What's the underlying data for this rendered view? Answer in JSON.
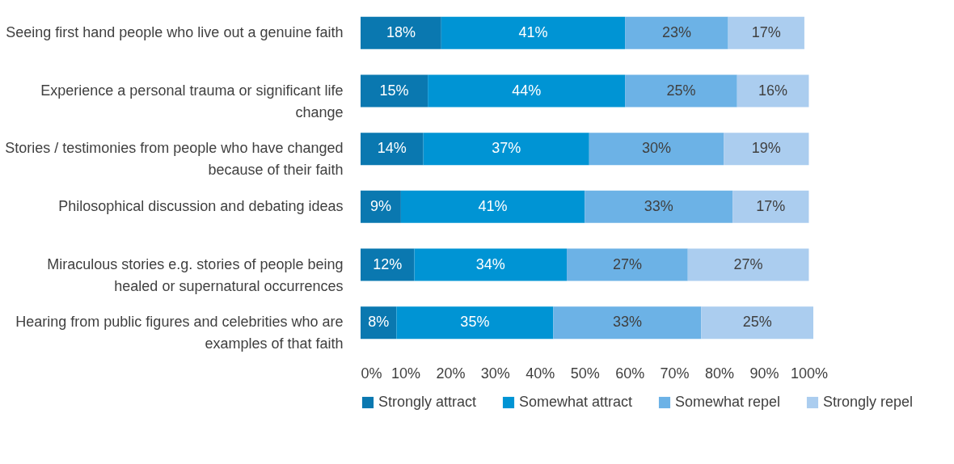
{
  "chart_data": {
    "type": "bar",
    "orientation": "horizontal",
    "stacked": true,
    "legend": "bottom",
    "grid": false,
    "categories": [
      "Seeing first hand people who live out a genuine faith",
      "Experience a personal trauma or significant life change",
      "Stories / testimonies from people who have changed because of their faith",
      "Philosophical discussion and debating ideas",
      "Miraculous stories  e.g. stories of people being healed or supernatural occurrences",
      "Hearing from public figures and celebrities who are examples of that faith"
    ],
    "xlim": [
      0,
      101
    ],
    "xticks": [
      {
        "value": 0,
        "label": "0%"
      },
      {
        "value": 10,
        "label": "10%"
      },
      {
        "value": 20,
        "label": "20%"
      },
      {
        "value": 30,
        "label": "30%"
      },
      {
        "value": 40,
        "label": "40%"
      },
      {
        "value": 50,
        "label": "50%"
      },
      {
        "value": 60,
        "label": "60%"
      },
      {
        "value": 70,
        "label": "70%"
      },
      {
        "value": 80,
        "label": "80%"
      },
      {
        "value": 90,
        "label": "90%"
      },
      {
        "value": 100,
        "label": "100%"
      }
    ],
    "series": [
      {
        "name": "Strongly attract",
        "color": "#0a78b0",
        "values": [
          18,
          15,
          14,
          9,
          12,
          8
        ],
        "value_labels": [
          "18%",
          "15%",
          "14%",
          "9%",
          "12%",
          "8%"
        ]
      },
      {
        "name": "Somewhat attract",
        "color": "#0094d4",
        "values": [
          41,
          44,
          37,
          41,
          34,
          35
        ],
        "value_labels": [
          "41%",
          "44%",
          "37%",
          "41%",
          "34%",
          "35%"
        ]
      },
      {
        "name": "Somewhat repel",
        "color": "#6cb2e6",
        "values": [
          23,
          25,
          30,
          33,
          27,
          33
        ],
        "value_labels": [
          "23%",
          "25%",
          "30%",
          "33%",
          "27%",
          "33%"
        ]
      },
      {
        "name": "Strongly repel",
        "color": "#abcdef",
        "values": [
          17,
          16,
          19,
          17,
          27,
          25
        ],
        "value_labels": [
          "17%",
          "16%",
          "19%",
          "17%",
          "27%",
          "25%"
        ]
      }
    ]
  }
}
